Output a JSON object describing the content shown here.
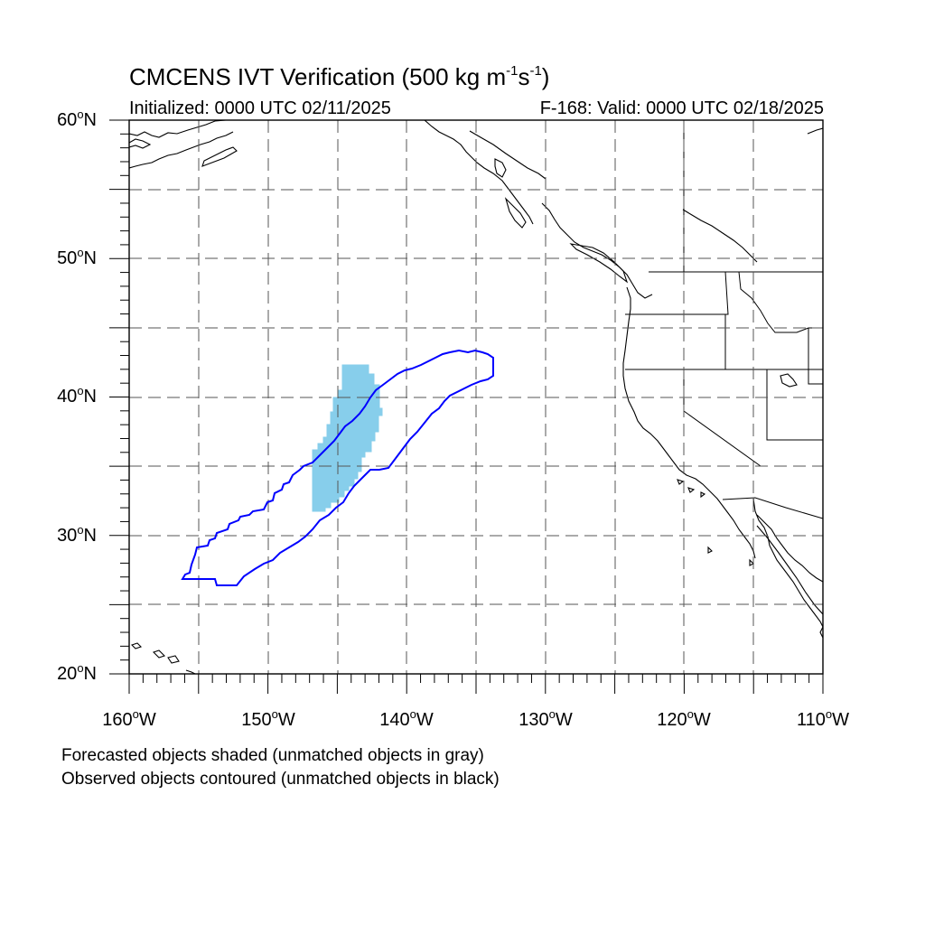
{
  "title": {
    "main": "CMCENS IVT Verification (500 kg m",
    "exp1": "-1",
    "mid": "s",
    "exp2": "-1",
    "end": ")"
  },
  "subtitle": {
    "left": "Initialized: 0000 UTC 02/11/2025",
    "right": "F-168: Valid: 0000 UTC 02/18/2025"
  },
  "axes": {
    "lat_labels": [
      {
        "value": "60",
        "hemi": "N"
      },
      {
        "value": "50",
        "hemi": "N"
      },
      {
        "value": "40",
        "hemi": "N"
      },
      {
        "value": "30",
        "hemi": "N"
      },
      {
        "value": "20",
        "hemi": "N"
      }
    ],
    "lon_labels": [
      {
        "value": "160",
        "hemi": "W"
      },
      {
        "value": "150",
        "hemi": "W"
      },
      {
        "value": "140",
        "hemi": "W"
      },
      {
        "value": "130",
        "hemi": "W"
      },
      {
        "value": "120",
        "hemi": "W"
      },
      {
        "value": "110",
        "hemi": "W"
      }
    ],
    "degree_symbol": "o",
    "lat_range": [
      20,
      60
    ],
    "lon_range": [
      -160,
      -110
    ],
    "grid_spacing_deg": 5,
    "grid": true
  },
  "footnotes": {
    "line1": "Forecasted objects shaded (unmatched objects in gray)",
    "line2": "Observed objects contoured (unmatched objects in black)"
  },
  "colors": {
    "forecast_fill": "#87ceeb",
    "observed_contour": "#0000ff",
    "coastline": "#000000",
    "grid": "#555555"
  },
  "objects": {
    "forecast_object": {
      "lon_range": [
        -146.8,
        -142.0
      ],
      "lat_range": [
        31.8,
        42.3
      ]
    },
    "observed_object": {
      "lon_range": [
        -156.2,
        -133.8
      ],
      "lat_range": [
        26.3,
        43.3
      ]
    }
  }
}
